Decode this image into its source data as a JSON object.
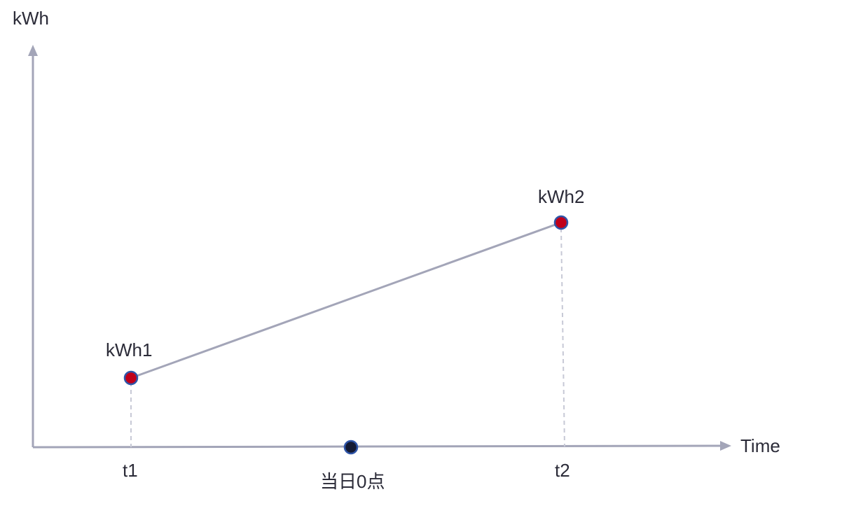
{
  "axes": {
    "y_label": "kWh",
    "x_label": "Time"
  },
  "points": {
    "p1": {
      "label": "kWh1",
      "time_label": "t1"
    },
    "p2": {
      "label": "kWh2",
      "time_label": "t2"
    },
    "midnight": {
      "label": "当日0点"
    }
  },
  "colors": {
    "axis": "#a3a5b8",
    "guide": "#c7c9d6",
    "reading_point": "#c0001a",
    "midnight_point": "#141a33",
    "point_outline": "#2f55a8",
    "text": "#2b2b38"
  }
}
